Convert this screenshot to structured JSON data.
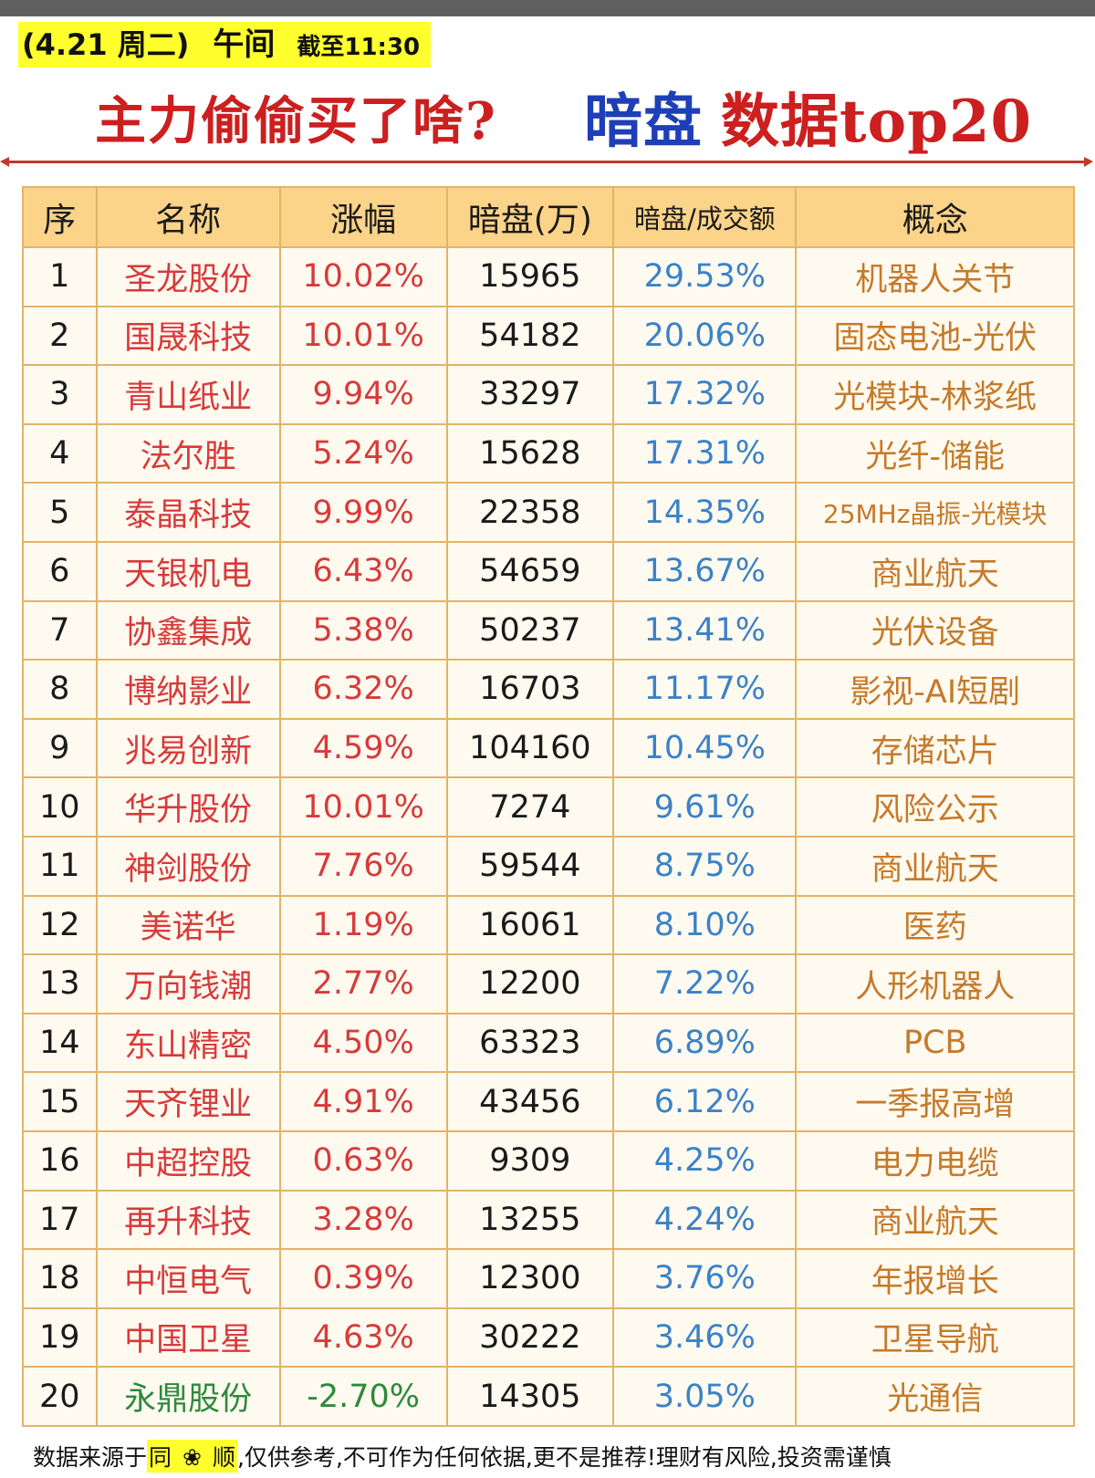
{
  "header": {
    "date": "(4.21 周二)",
    "session": "午间",
    "cutoff": "截至11:30",
    "title_left": "主力偷偷买了啥?",
    "title_blue": "暗盘",
    "title_red": "数据top20"
  },
  "table": {
    "columns": [
      "序",
      "名称",
      "涨幅",
      "暗盘(万)",
      "暗盘/成交额",
      "概念"
    ],
    "rows": [
      {
        "rank": "1",
        "name": "圣龙股份",
        "change": "10.02%",
        "dark": "15965",
        "ratio": "29.53%",
        "concept": "机器人关节"
      },
      {
        "rank": "2",
        "name": "国晟科技",
        "change": "10.01%",
        "dark": "54182",
        "ratio": "20.06%",
        "concept": "固态电池-光伏"
      },
      {
        "rank": "3",
        "name": "青山纸业",
        "change": "9.94%",
        "dark": "33297",
        "ratio": "17.32%",
        "concept": "光模块-林浆纸"
      },
      {
        "rank": "4",
        "name": "法尔胜",
        "change": "5.24%",
        "dark": "15628",
        "ratio": "17.31%",
        "concept": "光纤-储能"
      },
      {
        "rank": "5",
        "name": "泰晶科技",
        "change": "9.99%",
        "dark": "22358",
        "ratio": "14.35%",
        "concept": "25MHz晶振-光模块"
      },
      {
        "rank": "6",
        "name": "天银机电",
        "change": "6.43%",
        "dark": "54659",
        "ratio": "13.67%",
        "concept": "商业航天"
      },
      {
        "rank": "7",
        "name": "协鑫集成",
        "change": "5.38%",
        "dark": "50237",
        "ratio": "13.41%",
        "concept": "光伏设备"
      },
      {
        "rank": "8",
        "name": "博纳影业",
        "change": "6.32%",
        "dark": "16703",
        "ratio": "11.17%",
        "concept": "影视-AI短剧"
      },
      {
        "rank": "9",
        "name": "兆易创新",
        "change": "4.59%",
        "dark": "104160",
        "ratio": "10.45%",
        "concept": "存储芯片"
      },
      {
        "rank": "10",
        "name": "华升股份",
        "change": "10.01%",
        "dark": "7274",
        "ratio": "9.61%",
        "concept": "风险公示"
      },
      {
        "rank": "11",
        "name": "神剑股份",
        "change": "7.76%",
        "dark": "59544",
        "ratio": "8.75%",
        "concept": "商业航天"
      },
      {
        "rank": "12",
        "name": "美诺华",
        "change": "1.19%",
        "dark": "16061",
        "ratio": "8.10%",
        "concept": "医药"
      },
      {
        "rank": "13",
        "name": "万向钱潮",
        "change": "2.77%",
        "dark": "12200",
        "ratio": "7.22%",
        "concept": "人形机器人"
      },
      {
        "rank": "14",
        "name": "东山精密",
        "change": "4.50%",
        "dark": "63323",
        "ratio": "6.89%",
        "concept": "PCB"
      },
      {
        "rank": "15",
        "name": "天齐锂业",
        "change": "4.91%",
        "dark": "43456",
        "ratio": "6.12%",
        "concept": "一季报高增"
      },
      {
        "rank": "16",
        "name": "中超控股",
        "change": "0.63%",
        "dark": "9309",
        "ratio": "4.25%",
        "concept": "电力电缆"
      },
      {
        "rank": "17",
        "name": "再升科技",
        "change": "3.28%",
        "dark": "13255",
        "ratio": "4.24%",
        "concept": "商业航天"
      },
      {
        "rank": "18",
        "name": "中恒电气",
        "change": "0.39%",
        "dark": "12300",
        "ratio": "3.76%",
        "concept": "年报增长"
      },
      {
        "rank": "19",
        "name": "中国卫星",
        "change": "4.63%",
        "dark": "30222",
        "ratio": "3.46%",
        "concept": "卫星导航"
      },
      {
        "rank": "20",
        "name": "永鼎股份",
        "change": "-2.70%",
        "dark": "14305",
        "ratio": "3.05%",
        "concept": "光通信"
      }
    ]
  },
  "footer": {
    "prefix": "数据来源于",
    "source_1": "同",
    "source_icon": "❀",
    "source_2": "顺",
    "disclaimer": ",仅供参考,不可作为任何依据,更不是推荐!理财有风险,投资需谨慎"
  },
  "colors": {
    "header_bg": "#fbd389",
    "border": "#e2b466",
    "positive": "#d83a3a",
    "negative": "#2d8a3a",
    "ratio": "#3b82c7",
    "concept": "#c57a2a",
    "highlight": "#ffff2d",
    "title_red": "#cc1f1f",
    "title_blue": "#1f3fb8"
  }
}
